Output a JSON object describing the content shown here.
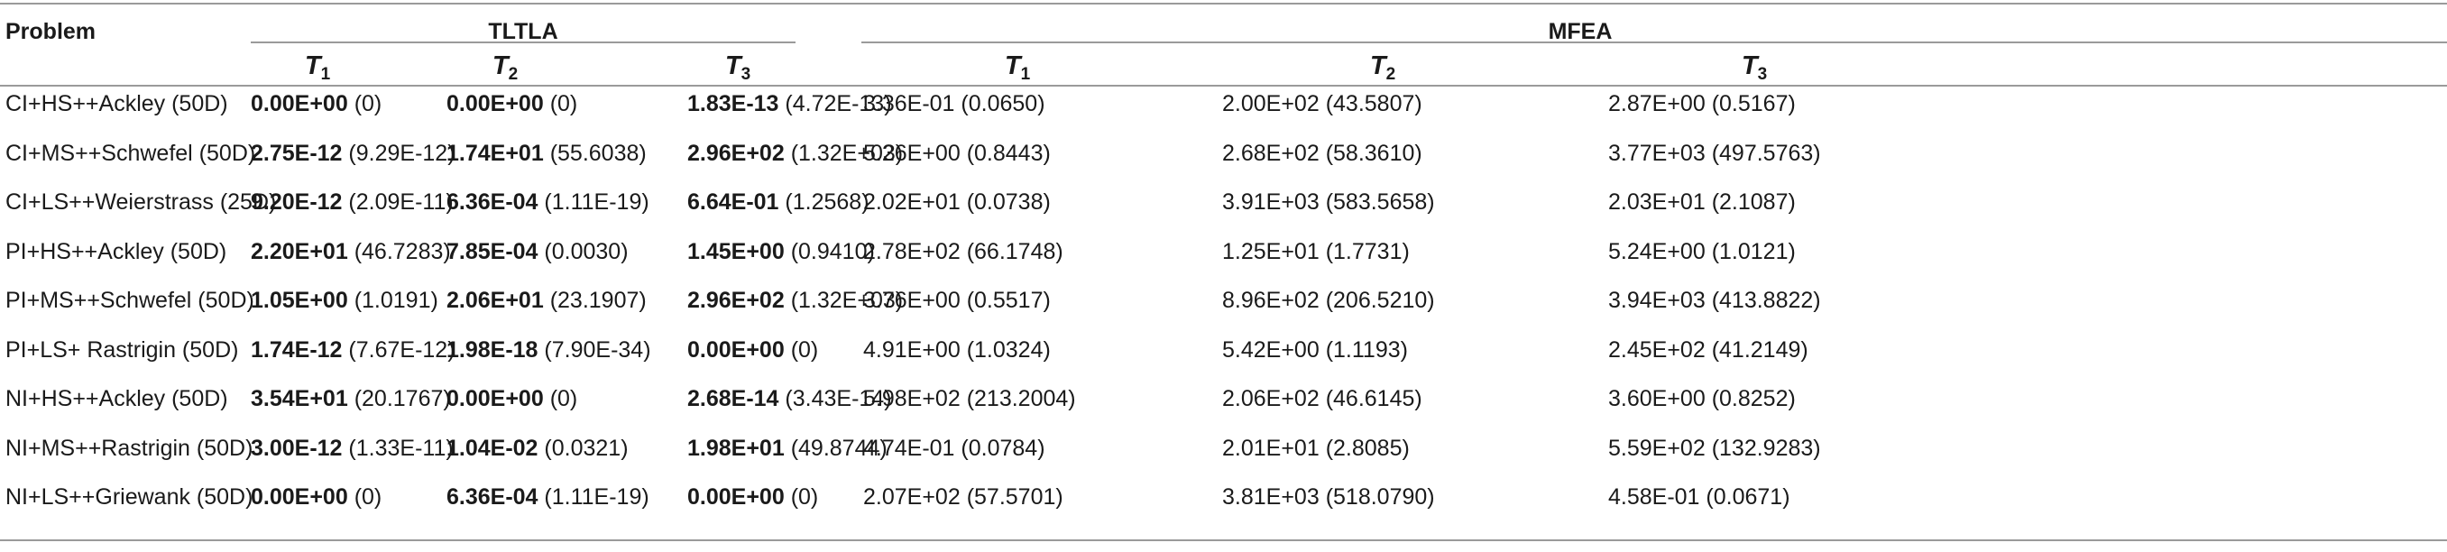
{
  "header": {
    "problem": "Problem",
    "groups": [
      "TLTLA",
      "MFEA"
    ],
    "task_letter": "T",
    "task_indices": [
      "1",
      "2",
      "3"
    ]
  },
  "rows": [
    {
      "problem": "CI+HS++Ackley (50D)",
      "cells": [
        {
          "mean": "0.00E+00",
          "sd": "(0)",
          "bold": true
        },
        {
          "mean": "0.00E+00",
          "sd": "(0)",
          "bold": true
        },
        {
          "mean": "1.83E-13",
          "sd": "(4.72E-13)",
          "bold": true
        },
        {
          "mean": "3.36E-01",
          "sd": "(0.0650)",
          "bold": false
        },
        {
          "mean": "2.00E+02",
          "sd": "(43.5807)",
          "bold": false
        },
        {
          "mean": "2.87E+00",
          "sd": "(0.5167)",
          "bold": false
        }
      ]
    },
    {
      "problem": "CI+MS++Schwefel (50D)",
      "cells": [
        {
          "mean": "2.75E-12",
          "sd": "(9.29E-12)",
          "bold": true
        },
        {
          "mean": "1.74E+01",
          "sd": "(55.6038)",
          "bold": true
        },
        {
          "mean": "2.96E+02",
          "sd": "(1.32E+03)",
          "bold": true
        },
        {
          "mean": "5.26E+00",
          "sd": "(0.8443)",
          "bold": false
        },
        {
          "mean": "2.68E+02",
          "sd": "(58.3610)",
          "bold": false
        },
        {
          "mean": "3.77E+03",
          "sd": "(497.5763)",
          "bold": false
        }
      ]
    },
    {
      "problem": "CI+LS++Weierstrass (25D)",
      "cells": [
        {
          "mean": "9.20E-12",
          "sd": "(2.09E-11)",
          "bold": true
        },
        {
          "mean": "6.36E-04",
          "sd": "(1.11E-19)",
          "bold": true
        },
        {
          "mean": "6.64E-01",
          "sd": "(1.2568)",
          "bold": true
        },
        {
          "mean": "2.02E+01",
          "sd": "(0.0738)",
          "bold": false
        },
        {
          "mean": "3.91E+03",
          "sd": "(583.5658)",
          "bold": false
        },
        {
          "mean": "2.03E+01",
          "sd": "(2.1087)",
          "bold": false
        }
      ]
    },
    {
      "problem": "PI+HS++Ackley (50D)",
      "cells": [
        {
          "mean": "2.20E+01",
          "sd": "(46.7283)",
          "bold": true
        },
        {
          "mean": "7.85E-04",
          "sd": "(0.0030)",
          "bold": true
        },
        {
          "mean": "1.45E+00",
          "sd": "(0.9410)",
          "bold": true
        },
        {
          "mean": "2.78E+02",
          "sd": "(66.1748)",
          "bold": false
        },
        {
          "mean": "1.25E+01",
          "sd": "(1.7731)",
          "bold": false
        },
        {
          "mean": "5.24E+00",
          "sd": "(1.0121)",
          "bold": false
        }
      ]
    },
    {
      "problem": "PI+MS++Schwefel (50D)",
      "cells": [
        {
          "mean": "1.05E+00",
          "sd": "(1.0191)",
          "bold": true
        },
        {
          "mean": "2.06E+01",
          "sd": "(23.1907)",
          "bold": true
        },
        {
          "mean": "2.96E+02",
          "sd": "(1.32E+03)",
          "bold": true
        },
        {
          "mean": "3.76E+00",
          "sd": "(0.5517)",
          "bold": false
        },
        {
          "mean": "8.96E+02",
          "sd": "(206.5210)",
          "bold": false
        },
        {
          "mean": "3.94E+03",
          "sd": "(413.8822)",
          "bold": false
        }
      ]
    },
    {
      "problem": "PI+LS+ Rastrigin (50D)",
      "cells": [
        {
          "mean": "1.74E-12",
          "sd": "(7.67E-12)",
          "bold": true
        },
        {
          "mean": "1.98E-18",
          "sd": "(7.90E-34)",
          "bold": true
        },
        {
          "mean": "0.00E+00",
          "sd": "(0)",
          "bold": true
        },
        {
          "mean": "4.91E+00",
          "sd": "(1.0324)",
          "bold": false
        },
        {
          "mean": "5.42E+00",
          "sd": "(1.1193)",
          "bold": false
        },
        {
          "mean": "2.45E+02",
          "sd": "(41.2149)",
          "bold": false
        }
      ]
    },
    {
      "problem": "NI+HS++Ackley (50D)",
      "cells": [
        {
          "mean": "3.54E+01",
          "sd": "(20.1767)",
          "bold": true
        },
        {
          "mean": "0.00E+00",
          "sd": "(0)",
          "bold": true
        },
        {
          "mean": "2.68E-14",
          "sd": "(3.43E-14)",
          "bold": true
        },
        {
          "mean": "5.98E+02",
          "sd": "(213.2004)",
          "bold": false
        },
        {
          "mean": "2.06E+02",
          "sd": "(46.6145)",
          "bold": false
        },
        {
          "mean": "3.60E+00",
          "sd": "(0.8252)",
          "bold": false
        }
      ]
    },
    {
      "problem": "NI+MS++Rastrigin (50D)",
      "cells": [
        {
          "mean": "3.00E-12",
          "sd": "(1.33E-11)",
          "bold": true
        },
        {
          "mean": "1.04E-02",
          "sd": "(0.0321)",
          "bold": true
        },
        {
          "mean": "1.98E+01",
          "sd": "(49.8744)",
          "bold": true
        },
        {
          "mean": "4.74E-01",
          "sd": "(0.0784)",
          "bold": false
        },
        {
          "mean": "2.01E+01",
          "sd": "(2.8085)",
          "bold": false
        },
        {
          "mean": "5.59E+02",
          "sd": "(132.9283)",
          "bold": false
        }
      ]
    },
    {
      "problem": "NI+LS++Griewank (50D)",
      "cells": [
        {
          "mean": "0.00E+00",
          "sd": "(0)",
          "bold": true
        },
        {
          "mean": "6.36E-04",
          "sd": "(1.11E-19)",
          "bold": true
        },
        {
          "mean": "0.00E+00",
          "sd": "(0)",
          "bold": true
        },
        {
          "mean": "2.07E+02",
          "sd": "(57.5701)",
          "bold": false
        },
        {
          "mean": "3.81E+03",
          "sd": "(518.0790)",
          "bold": false
        },
        {
          "mean": "4.58E-01",
          "sd": "(0.0671)",
          "bold": false
        }
      ]
    }
  ]
}
